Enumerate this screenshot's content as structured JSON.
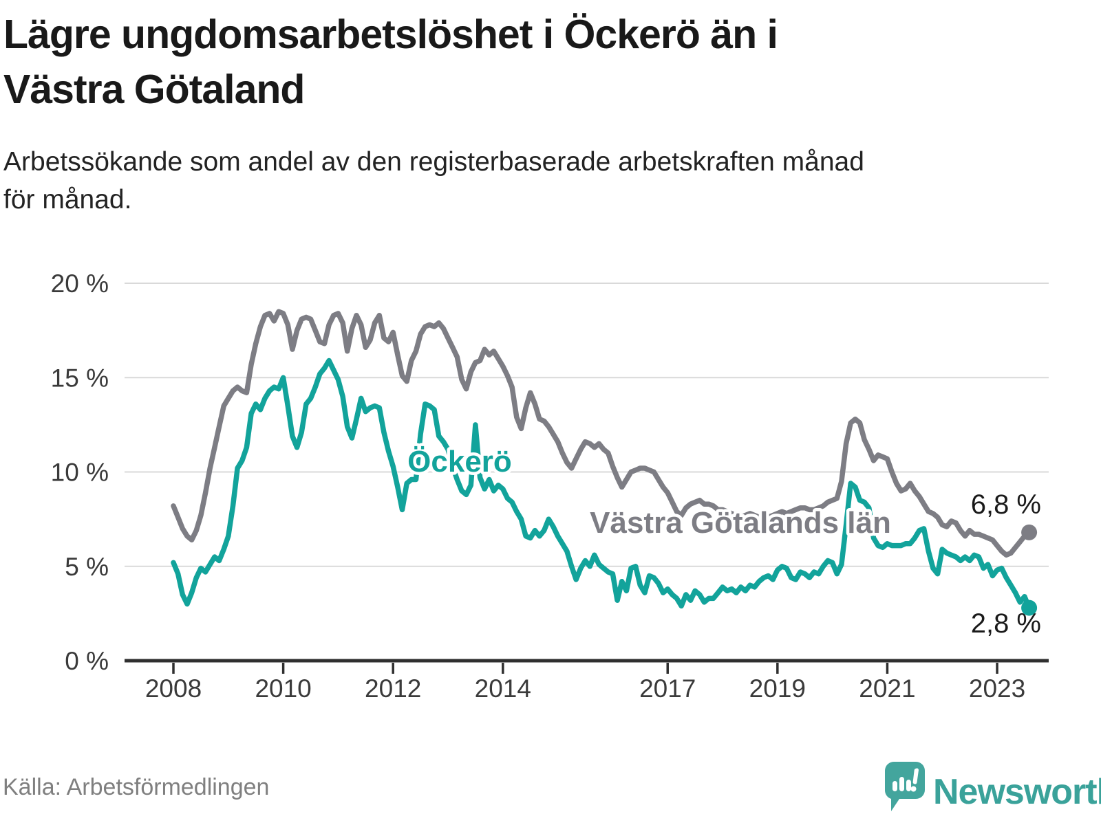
{
  "header": {
    "title_line1": "Lägre ungdomsarbetslöshet i Öckerö än i",
    "title_line2": "Västra Götaland",
    "subtitle_line1": "Arbetssökande som andel av den registerbaserade arbetskraften månad",
    "subtitle_line2": "för månad."
  },
  "footer": {
    "source": "Källa: Arbetsförmedlingen",
    "brand": "Newsworthy"
  },
  "colors": {
    "teal": "#12a39b",
    "gray": "#7d7d84",
    "brand_teal": "#3aa29a",
    "grid": "#d9d9d9",
    "axis": "#2f2f2f",
    "text_dark": "#191919",
    "source_gray": "#7f7f7f"
  },
  "chart_data": {
    "type": "line",
    "unit": "%",
    "frequency": "monthly",
    "x_start": "2008-01",
    "x_end": "2023-08",
    "ylim": [
      0,
      20
    ],
    "grid": "horizontal",
    "legend_position": "inline-labels",
    "y_ticks": [
      {
        "value": 20,
        "label": "20 %"
      },
      {
        "value": 15,
        "label": "15 %"
      },
      {
        "value": 10,
        "label": "10 %"
      },
      {
        "value": 5,
        "label": "5 %"
      },
      {
        "value": 0,
        "label": "0 %"
      }
    ],
    "x_ticks": [
      {
        "year": 2008,
        "label": "2008"
      },
      {
        "year": 2010,
        "label": "2010"
      },
      {
        "year": 2012,
        "label": "2012"
      },
      {
        "year": 2014,
        "label": "2014"
      },
      {
        "year": 2017,
        "label": "2017"
      },
      {
        "year": 2019,
        "label": "2019"
      },
      {
        "year": 2021,
        "label": "2021"
      },
      {
        "year": 2023,
        "label": "2023"
      }
    ],
    "series": [
      {
        "name": "Västra Götalands län",
        "color": "#7d7d84",
        "end_label": "6,8 %",
        "end_value": 6.8,
        "values": [
          8.2,
          7.6,
          7.0,
          6.6,
          6.4,
          6.9,
          7.7,
          8.9,
          10.2,
          11.3,
          12.4,
          13.5,
          13.9,
          14.3,
          14.5,
          14.3,
          14.2,
          15.7,
          16.8,
          17.7,
          18.3,
          18.4,
          18.0,
          18.5,
          18.4,
          17.8,
          16.5,
          17.5,
          18.1,
          18.2,
          18.1,
          17.5,
          16.9,
          16.8,
          17.8,
          18.3,
          18.4,
          17.9,
          16.4,
          17.6,
          18.3,
          17.8,
          16.6,
          17.0,
          17.9,
          18.3,
          17.1,
          16.9,
          17.4,
          16.2,
          15.1,
          14.8,
          15.9,
          16.4,
          17.3,
          17.7,
          17.8,
          17.7,
          17.9,
          17.6,
          17.1,
          16.6,
          16.1,
          14.9,
          14.4,
          15.3,
          15.8,
          15.9,
          16.5,
          16.2,
          16.4,
          16.0,
          15.6,
          15.1,
          14.5,
          12.9,
          12.3,
          13.4,
          14.2,
          13.6,
          12.8,
          12.7,
          12.4,
          12.0,
          11.6,
          11.0,
          10.5,
          10.2,
          10.7,
          11.2,
          11.6,
          11.5,
          11.3,
          11.5,
          11.2,
          11.0,
          10.3,
          9.7,
          9.2,
          9.6,
          10.0,
          10.1,
          10.2,
          10.2,
          10.1,
          10.0,
          9.6,
          9.2,
          8.9,
          8.4,
          7.9,
          7.7,
          8.1,
          8.3,
          8.4,
          8.5,
          8.3,
          8.3,
          8.2,
          8.0,
          8.0,
          7.9,
          7.8,
          7.7,
          7.6,
          7.7,
          7.8,
          7.7,
          7.6,
          7.5,
          7.6,
          7.7,
          7.8,
          7.9,
          7.8,
          7.9,
          8.0,
          8.1,
          8.1,
          8.0,
          8.0,
          8.1,
          8.2,
          8.4,
          8.5,
          8.6,
          9.5,
          11.5,
          12.6,
          12.8,
          12.6,
          11.7,
          11.2,
          10.6,
          10.9,
          10.8,
          10.7,
          10.0,
          9.4,
          9.0,
          9.1,
          9.4,
          9.0,
          8.7,
          8.3,
          7.9,
          7.8,
          7.6,
          7.2,
          7.1,
          7.4,
          7.3,
          6.9,
          6.6,
          6.9,
          6.7,
          6.7,
          6.6,
          6.5,
          6.4,
          6.1,
          5.8,
          5.6,
          5.7,
          6.0,
          6.3,
          6.6,
          6.8
        ]
      },
      {
        "name": "Öckerö",
        "color": "#12a39b",
        "end_label": "2,8 %",
        "end_value": 2.8,
        "values": [
          5.2,
          4.6,
          3.5,
          3.0,
          3.6,
          4.4,
          4.9,
          4.7,
          5.1,
          5.5,
          5.3,
          5.9,
          6.6,
          8.2,
          10.2,
          10.6,
          11.3,
          13.1,
          13.6,
          13.3,
          13.9,
          14.3,
          14.5,
          14.4,
          15.0,
          13.5,
          11.9,
          11.3,
          12.1,
          13.6,
          13.9,
          14.5,
          15.2,
          15.5,
          15.9,
          15.4,
          14.9,
          14.0,
          12.4,
          11.8,
          12.8,
          13.9,
          13.2,
          13.4,
          13.5,
          13.4,
          12.1,
          11.1,
          10.3,
          9.2,
          8.0,
          9.4,
          9.6,
          9.6,
          12.0,
          13.6,
          13.5,
          13.3,
          11.9,
          11.6,
          11.2,
          10.3,
          9.6,
          9.0,
          8.8,
          9.3,
          12.5,
          9.7,
          9.1,
          9.6,
          9.0,
          9.3,
          9.1,
          8.6,
          8.4,
          7.9,
          7.5,
          6.6,
          6.5,
          6.9,
          6.6,
          6.9,
          7.5,
          7.1,
          6.6,
          6.2,
          5.8,
          5.0,
          4.3,
          4.9,
          5.3,
          5.0,
          5.6,
          5.1,
          4.9,
          4.7,
          4.6,
          3.2,
          4.2,
          3.7,
          4.9,
          5.0,
          4.0,
          3.6,
          4.5,
          4.4,
          4.1,
          3.6,
          3.8,
          3.5,
          3.3,
          2.9,
          3.5,
          3.2,
          3.7,
          3.5,
          3.1,
          3.3,
          3.3,
          3.6,
          3.9,
          3.7,
          3.8,
          3.6,
          3.9,
          3.7,
          4.0,
          3.9,
          4.2,
          4.4,
          4.5,
          4.3,
          4.8,
          5.0,
          4.9,
          4.4,
          4.3,
          4.7,
          4.6,
          4.4,
          4.7,
          4.6,
          5.0,
          5.3,
          5.2,
          4.6,
          5.1,
          7.2,
          9.4,
          9.2,
          8.5,
          8.4,
          8.1,
          6.5,
          6.1,
          6.0,
          6.2,
          6.1,
          6.1,
          6.1,
          6.2,
          6.2,
          6.5,
          6.9,
          7.0,
          5.8,
          4.9,
          4.6,
          5.9,
          5.7,
          5.6,
          5.5,
          5.3,
          5.5,
          5.3,
          5.6,
          5.5,
          4.9,
          5.1,
          4.5,
          4.8,
          4.9,
          4.4,
          4.0,
          3.6,
          3.1,
          3.4,
          2.8
        ]
      }
    ]
  }
}
